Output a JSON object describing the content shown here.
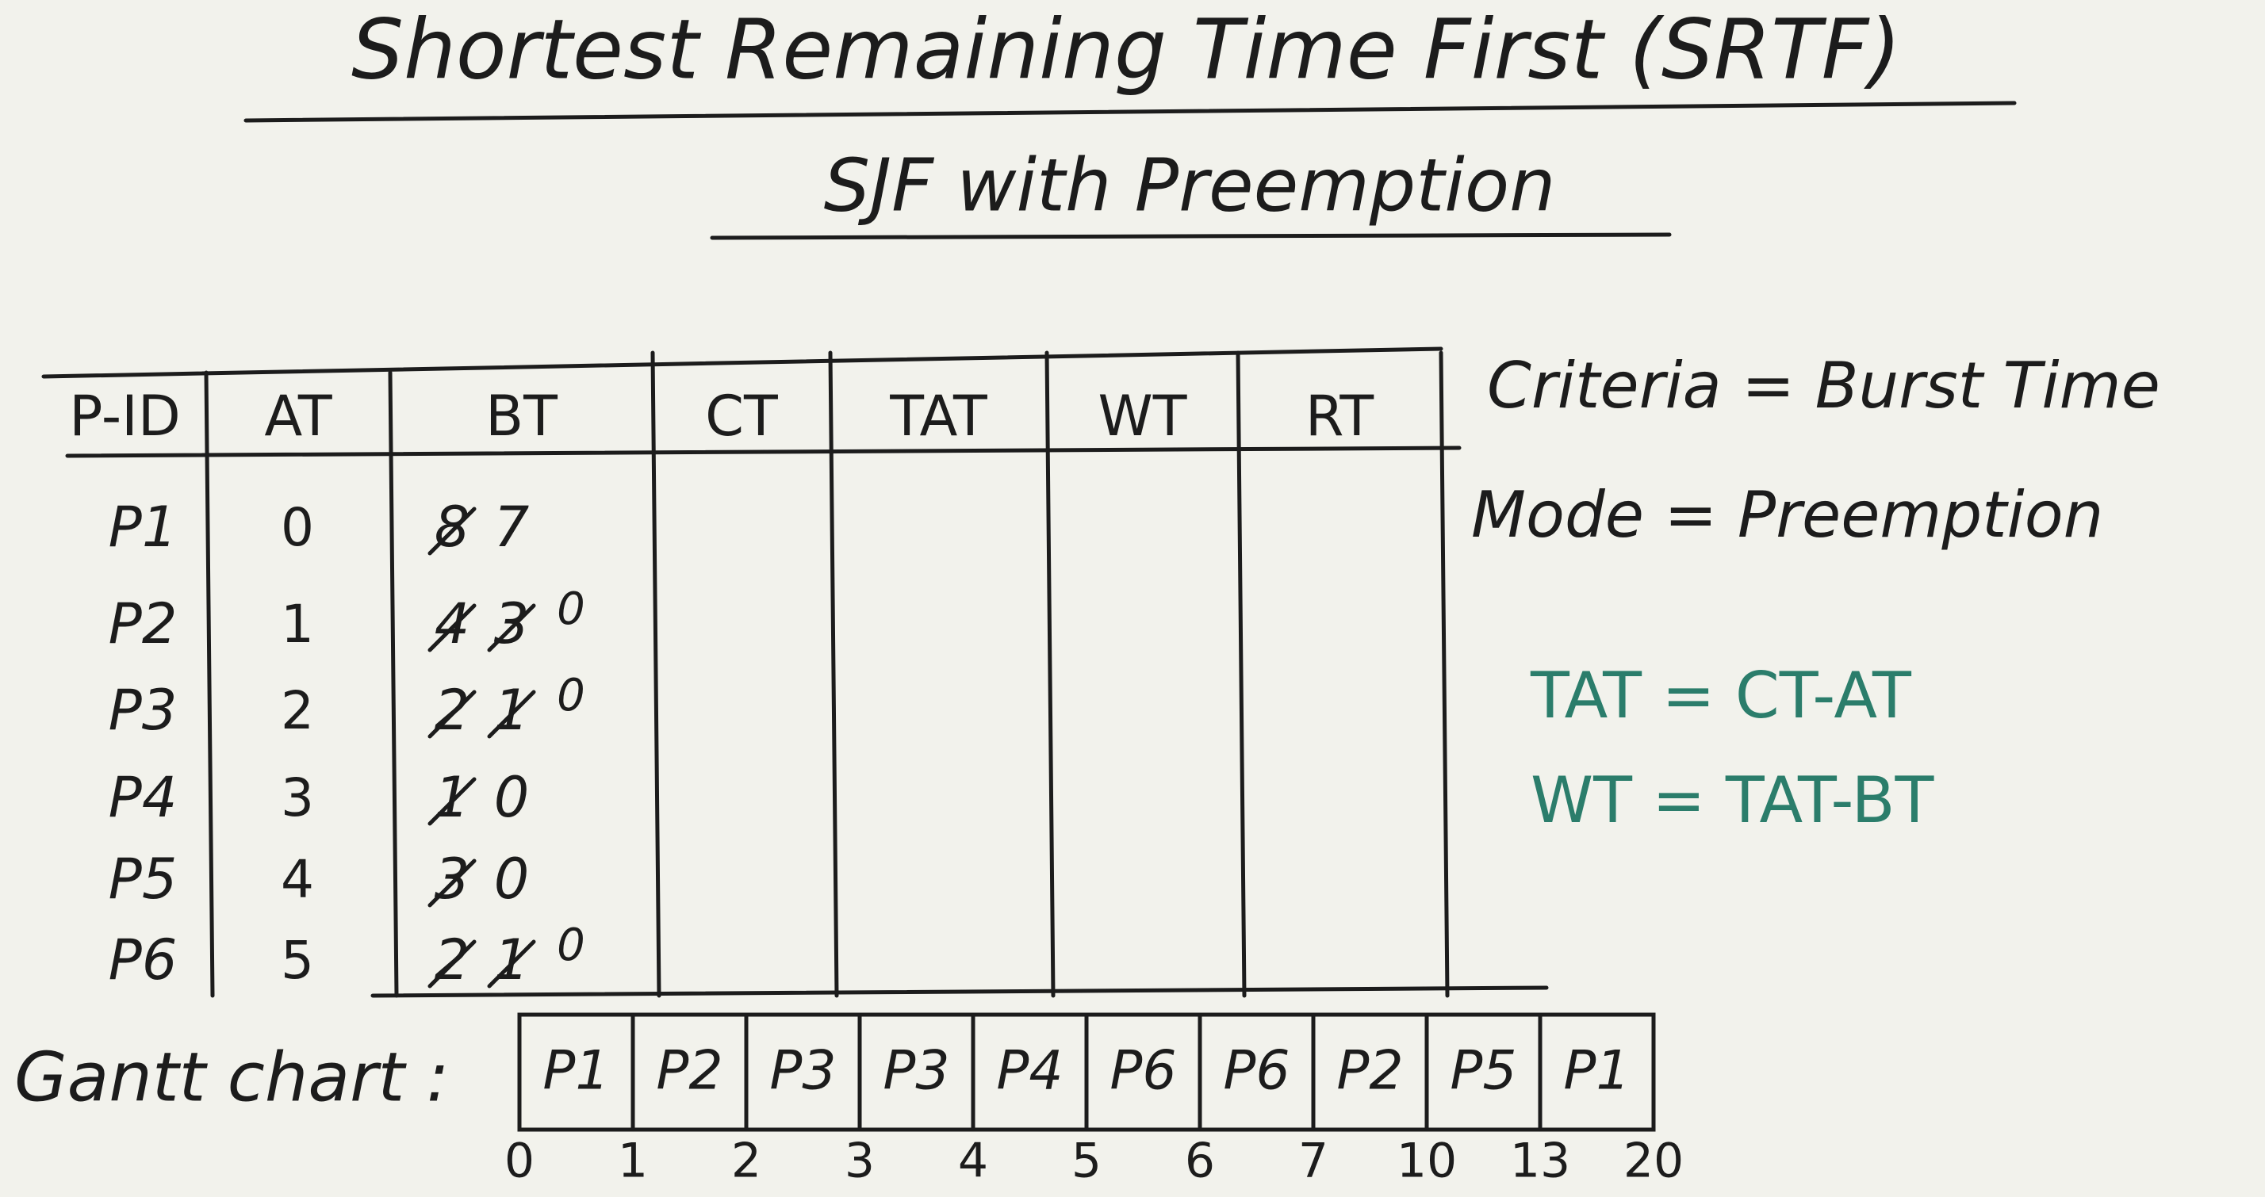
{
  "header": {
    "title": "Shortest Remaining Time First (SRTF)",
    "subtitle": "SJF with Preemption"
  },
  "table": {
    "columns": [
      "P-ID",
      "AT",
      "BT",
      "CT",
      "TAT",
      "WT",
      "RT"
    ],
    "rows": [
      {
        "pid": "P1",
        "at": "0",
        "bt": [
          "8",
          "7"
        ]
      },
      {
        "pid": "P2",
        "at": "1",
        "bt": [
          "4",
          "3",
          "0"
        ]
      },
      {
        "pid": "P3",
        "at": "2",
        "bt": [
          "2",
          "1",
          "0"
        ]
      },
      {
        "pid": "P4",
        "at": "3",
        "bt": [
          "1",
          "0"
        ]
      },
      {
        "pid": "P5",
        "at": "4",
        "bt": [
          "3",
          "0"
        ]
      },
      {
        "pid": "P6",
        "at": "5",
        "bt": [
          "2",
          "1",
          "0"
        ]
      }
    ]
  },
  "notes": {
    "criteria": "Criteria = Burst Time",
    "mode": "Mode = Preemption",
    "tat_formula": "TAT = CT-AT",
    "wt_formula": "WT = TAT-BT"
  },
  "gantt": {
    "label": "Gantt chart :",
    "cells": [
      "P1",
      "P2",
      "P3",
      "P3",
      "P4",
      "P6",
      "P6",
      "P2",
      "P5",
      "P1"
    ],
    "times": [
      "0",
      "1",
      "2",
      "3",
      "4",
      "5",
      "6",
      "7",
      "10",
      "13",
      "20"
    ]
  }
}
